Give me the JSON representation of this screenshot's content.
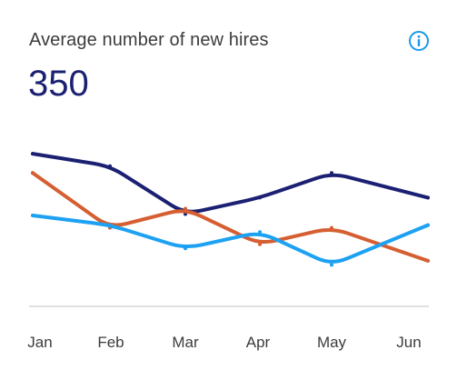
{
  "header": {
    "title": "Average number of new hires",
    "value": "350",
    "info_icon": "info-icon"
  },
  "colors": {
    "series_1": "#1b2072",
    "series_2": "#d55f32",
    "series_3": "#1da1f2",
    "info": "#1a9ae6",
    "baseline": "#d6d6d6"
  },
  "chart_data": {
    "type": "line",
    "categories": [
      "Jan",
      "Feb",
      "Mar",
      "Apr",
      "May",
      "Jun"
    ],
    "ylim": [
      0,
      100
    ],
    "grid": false,
    "series": [
      {
        "values": [
          92,
          83,
          48,
          60,
          78,
          60
        ]
      },
      {
        "values": [
          78,
          38,
          52,
          26,
          38,
          14
        ]
      },
      {
        "values": [
          47,
          40,
          23,
          35,
          11,
          40
        ]
      }
    ]
  }
}
